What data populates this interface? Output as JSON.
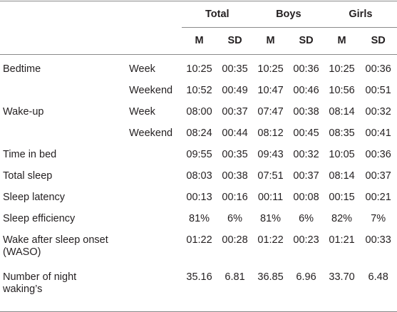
{
  "columns": {
    "groups": [
      "Total",
      "Boys",
      "Girls"
    ],
    "stats": [
      "M",
      "SD",
      "M",
      "SD",
      "M",
      "SD"
    ]
  },
  "rows": [
    {
      "label": "Bedtime",
      "sub": "Week",
      "values": [
        "10:25",
        "00:35",
        "10:25",
        "00:36",
        "10:25",
        "00:36"
      ]
    },
    {
      "label": "",
      "sub": "Weekend",
      "values": [
        "10:52",
        "00:49",
        "10:47",
        "00:46",
        "10:56",
        "00:51"
      ]
    },
    {
      "label": "Wake-up",
      "sub": "Week",
      "values": [
        "08:00",
        "00:37",
        "07:47",
        "00:38",
        "08:14",
        "00:32"
      ]
    },
    {
      "label": "",
      "sub": "Weekend",
      "values": [
        "08:24",
        "00:44",
        "08:12",
        "00:45",
        "08:35",
        "00:41"
      ]
    },
    {
      "label": "Time in bed",
      "sub": "",
      "values": [
        "09:55",
        "00:35",
        "09:43",
        "00:32",
        "10:05",
        "00:36"
      ]
    },
    {
      "label": "Total sleep",
      "sub": "",
      "values": [
        "08:03",
        "00:38",
        "07:51",
        "00:37",
        "08:14",
        "00:37"
      ]
    },
    {
      "label": "Sleep latency",
      "sub": "",
      "values": [
        "00:13",
        "00:16",
        "00:11",
        "00:08",
        "00:15",
        "00:21"
      ]
    },
    {
      "label": "Sleep efficiency",
      "sub": "",
      "values": [
        "81%",
        "6%",
        "81%",
        "6%",
        "82%",
        "7%"
      ]
    },
    {
      "label": "Wake after sleep onset (WASO)",
      "sub": "",
      "values": [
        "01:22",
        "00:28",
        "01:22",
        "00:23",
        "01:21",
        "00:33"
      ]
    },
    {
      "label": "Number of night waking’s",
      "sub": "",
      "values": [
        "35.16",
        "6.81",
        "36.85",
        "6.96",
        "33.70",
        "6.48"
      ]
    }
  ]
}
